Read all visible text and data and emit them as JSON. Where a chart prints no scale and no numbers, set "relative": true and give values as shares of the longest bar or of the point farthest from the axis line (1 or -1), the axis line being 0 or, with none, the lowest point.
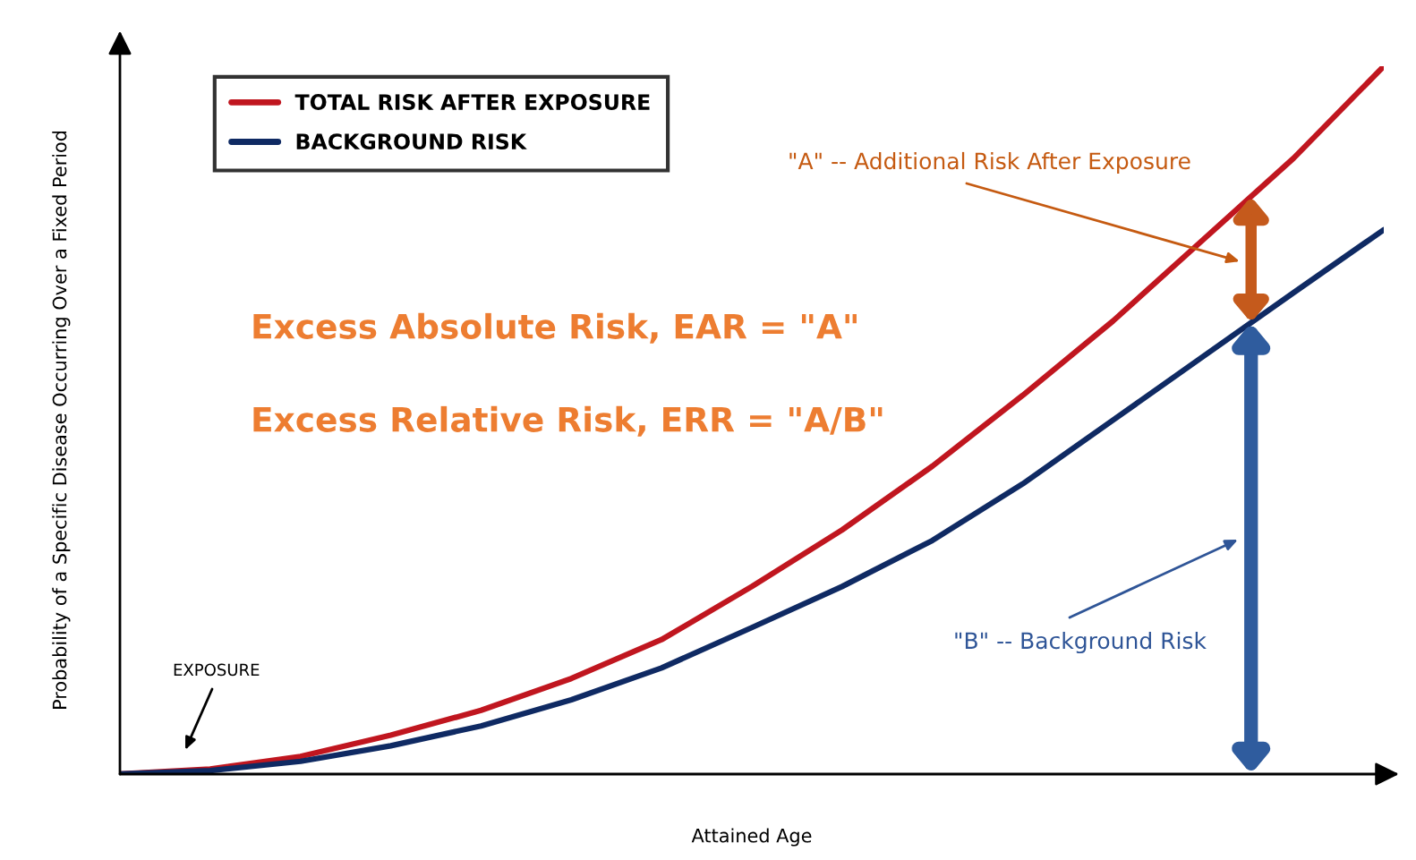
{
  "chart_data": {
    "type": "line",
    "relative": true,
    "xlabel": "Attained Age",
    "ylabel": "Probability of a Specific Disease Occurring Over a Fixed Period",
    "categories": [
      null,
      null,
      null,
      null,
      null,
      null,
      null,
      null,
      null,
      null,
      null,
      null,
      null,
      null,
      null
    ],
    "series": [
      {
        "name": "TOTAL RISK AFTER EXPOSURE",
        "color": "#c0161f",
        "values": [
          0,
          0.007,
          0.025,
          0.055,
          0.09,
          0.135,
          0.19,
          0.265,
          0.345,
          0.435,
          0.535,
          0.64,
          0.755,
          0.87,
          1
        ]
      },
      {
        "name": "BACKGROUND RISK",
        "color": "#0f2a63",
        "values": [
          0,
          0.005,
          0.018,
          0.04,
          0.068,
          0.105,
          0.15,
          0.207,
          0.265,
          0.33,
          0.41,
          0.5,
          0.59,
          0.68,
          0.769
        ]
      }
    ],
    "legend": "top left",
    "grid": false,
    "marker": "none",
    "line_style": "solid",
    "annotations": [
      "Excess Absolute Risk, EAR = \"A\"",
      "Excess Relative Risk, ERR = \"A/B\"",
      "\"A\" -- Additional Risk After Exposure",
      "\"B\" -- Background Risk",
      "EXPOSURE"
    ]
  }
}
